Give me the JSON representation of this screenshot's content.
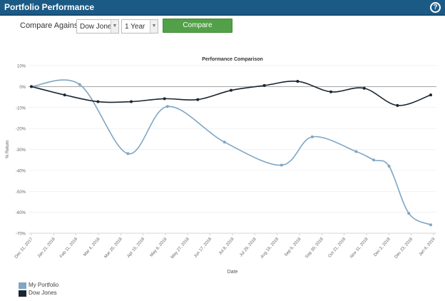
{
  "header": {
    "title": "Portfolio Performance",
    "help_icon": "help-icon",
    "help_glyph": "?"
  },
  "controls": {
    "label": "Compare Against",
    "index_select": "Dow Jones",
    "period_select": "1 Year",
    "compare_button": "Compare"
  },
  "colors": {
    "header_bg": "#1c5a86",
    "button_bg": "#52a047",
    "portfolio": "#7fa6c4",
    "dow": "#1a2530"
  },
  "chart_data": {
    "type": "line",
    "title": "Performance Comparison",
    "xlabel": "Date",
    "ylabel": "% Return",
    "ylim": [
      -70,
      10
    ],
    "yticks": [
      "10%",
      "0%",
      "-10%",
      "-20%",
      "-30%",
      "-40%",
      "-50%",
      "-60%",
      "-70%"
    ],
    "categories": [
      "Dec 31, 2017",
      "Jan 21, 2018",
      "Feb 11, 2018",
      "Mar 4, 2018",
      "Mar 25, 2018",
      "Apr 15, 2018",
      "May 6, 2018",
      "May 27, 2018",
      "Jun 17, 2018",
      "Jul 8, 2018",
      "Jul 29, 2018",
      "Aug 19, 2018",
      "Sep 9, 2018",
      "Sep 30, 2018",
      "Oct 21, 2018",
      "Nov 11, 2018",
      "Dec 2, 2018",
      "Dec 23, 2018",
      "Jan 6, 2019"
    ],
    "series": [
      {
        "name": "My Portfolio",
        "x": [
          0,
          2.2,
          4.4,
          6.2,
          8.8,
          11.4,
          12.8,
          14.8,
          15.6,
          16.3,
          17.2,
          18.2
        ],
        "values": [
          0,
          1,
          -32,
          -9.5,
          -26.5,
          -37.5,
          -24,
          -31,
          -35,
          -38,
          -60.5,
          -66
        ]
      },
      {
        "name": "Dow Jones",
        "x": [
          0,
          2.2,
          4.4,
          6.6,
          8.8,
          11,
          13.2,
          15.4,
          17.6,
          19.8,
          22,
          24.2,
          26.4,
          28.6,
          30.8
        ],
        "values": [
          0,
          -4,
          -7.2,
          -7.2,
          -5.8,
          -6.2,
          -1.8,
          0.5,
          2.5,
          -2.5,
          -0.8,
          -9,
          -4,
          null,
          null
        ]
      }
    ]
  },
  "legend": [
    {
      "label": "My Portfolio",
      "color": "#7fa6c4"
    },
    {
      "label": "Dow Jones",
      "color": "#1a2530"
    }
  ]
}
